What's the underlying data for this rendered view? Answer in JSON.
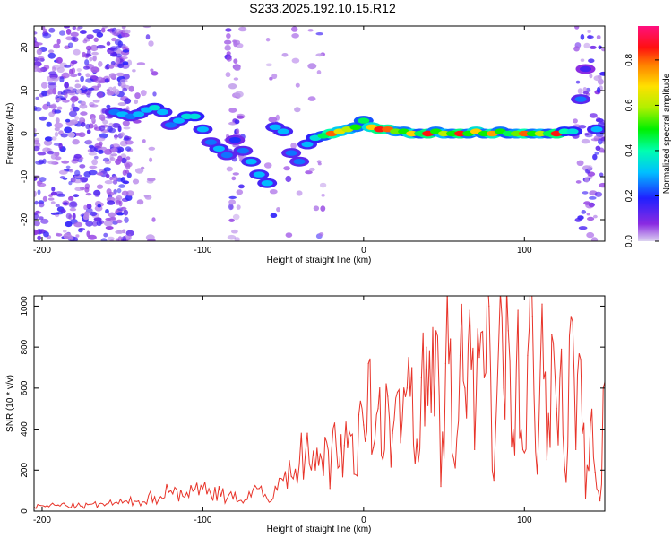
{
  "title": "S233.2025.192.10.15.R12",
  "chart_data": [
    {
      "type": "heatmap",
      "xlabel": "Height of straight line (km)",
      "ylabel": "Frequency (Hz)",
      "xlim": [
        -205,
        150
      ],
      "ylim": [
        -25,
        25
      ],
      "xticks": [
        -200,
        -100,
        0,
        100
      ],
      "yticks": [
        -20,
        -10,
        0,
        10,
        20
      ],
      "colorbar": {
        "label": "Normalized spectral amplitude",
        "range": [
          0.0,
          0.95
        ],
        "ticks": [
          0.0,
          0.2,
          0.4,
          0.6,
          0.8
        ],
        "colormap": "rainbow (purple -> blue -> cyan -> green -> yellow -> orange -> red -> magenta)"
      },
      "ridge": [
        {
          "x": -155,
          "y": 5.0,
          "v": 0.25
        },
        {
          "x": -150,
          "y": 4.5,
          "v": 0.3
        },
        {
          "x": -145,
          "y": 4.0,
          "v": 0.25
        },
        {
          "x": -140,
          "y": 4.5,
          "v": 0.3
        },
        {
          "x": -135,
          "y": 5.5,
          "v": 0.3
        },
        {
          "x": -130,
          "y": 6.0,
          "v": 0.35
        },
        {
          "x": -125,
          "y": 5.0,
          "v": 0.3
        },
        {
          "x": -120,
          "y": 2.0,
          "v": 0.25
        },
        {
          "x": -115,
          "y": 3.0,
          "v": 0.3
        },
        {
          "x": -110,
          "y": 4.0,
          "v": 0.35
        },
        {
          "x": -105,
          "y": 4.0,
          "v": 0.35
        },
        {
          "x": -100,
          "y": 1.0,
          "v": 0.3
        },
        {
          "x": -95,
          "y": -2.0,
          "v": 0.25
        },
        {
          "x": -90,
          "y": -3.5,
          "v": 0.3
        },
        {
          "x": -85,
          "y": -5.0,
          "v": 0.25
        },
        {
          "x": -80,
          "y": -1.5,
          "v": 0.2
        },
        {
          "x": -75,
          "y": -4.0,
          "v": 0.25
        },
        {
          "x": -70,
          "y": -6.5,
          "v": 0.3
        },
        {
          "x": -65,
          "y": -9.5,
          "v": 0.3
        },
        {
          "x": -60,
          "y": -11.5,
          "v": 0.3
        },
        {
          "x": -55,
          "y": 1.5,
          "v": 0.3
        },
        {
          "x": -50,
          "y": 0.5,
          "v": 0.3
        },
        {
          "x": -45,
          "y": -4.5,
          "v": 0.25
        },
        {
          "x": -40,
          "y": -6.5,
          "v": 0.25
        },
        {
          "x": -35,
          "y": -2.5,
          "v": 0.3
        },
        {
          "x": -30,
          "y": -1.0,
          "v": 0.35
        },
        {
          "x": -25,
          "y": -0.5,
          "v": 0.45
        },
        {
          "x": -20,
          "y": 0.0,
          "v": 0.8
        },
        {
          "x": -15,
          "y": 0.5,
          "v": 0.65
        },
        {
          "x": -10,
          "y": 1.0,
          "v": 0.6
        },
        {
          "x": -5,
          "y": 1.5,
          "v": 0.5
        },
        {
          "x": 0,
          "y": 3.0,
          "v": 0.45
        },
        {
          "x": 5,
          "y": 1.5,
          "v": 0.7
        },
        {
          "x": 10,
          "y": 1.0,
          "v": 0.85
        },
        {
          "x": 15,
          "y": 1.0,
          "v": 0.8
        },
        {
          "x": 20,
          "y": 0.5,
          "v": 0.55
        },
        {
          "x": 25,
          "y": 0.5,
          "v": 0.5
        },
        {
          "x": 30,
          "y": 0.0,
          "v": 0.7
        },
        {
          "x": 35,
          "y": 0.0,
          "v": 0.45
        },
        {
          "x": 40,
          "y": 0.0,
          "v": 0.85
        },
        {
          "x": 45,
          "y": 0.5,
          "v": 0.5
        },
        {
          "x": 50,
          "y": 0.0,
          "v": 0.6
        },
        {
          "x": 55,
          "y": 0.0,
          "v": 0.5
        },
        {
          "x": 60,
          "y": 0.0,
          "v": 0.85
        },
        {
          "x": 65,
          "y": 0.0,
          "v": 0.5
        },
        {
          "x": 70,
          "y": 0.5,
          "v": 0.7
        },
        {
          "x": 75,
          "y": 0.0,
          "v": 0.5
        },
        {
          "x": 80,
          "y": 0.0,
          "v": 0.75
        },
        {
          "x": 85,
          "y": 0.5,
          "v": 0.5
        },
        {
          "x": 90,
          "y": 0.0,
          "v": 0.45
        },
        {
          "x": 95,
          "y": 0.0,
          "v": 0.55
        },
        {
          "x": 100,
          "y": 0.0,
          "v": 0.8
        },
        {
          "x": 105,
          "y": 0.0,
          "v": 0.5
        },
        {
          "x": 110,
          "y": 0.0,
          "v": 0.6
        },
        {
          "x": 115,
          "y": 0.0,
          "v": 0.45
        },
        {
          "x": 120,
          "y": 0.0,
          "v": 0.85
        },
        {
          "x": 125,
          "y": 0.5,
          "v": 0.4
        },
        {
          "x": 130,
          "y": 0.5,
          "v": 0.35
        },
        {
          "x": 135,
          "y": 8.0,
          "v": 0.25
        },
        {
          "x": 138,
          "y": 15.0,
          "v": 0.15
        },
        {
          "x": 145,
          "y": 1.0,
          "v": 0.3
        }
      ]
    },
    {
      "type": "line",
      "xlabel": "Height of straight line (km)",
      "ylabel": "SNR (10 * v/v)",
      "xlim": [
        -205,
        150
      ],
      "ylim": [
        0,
        1050
      ],
      "xticks": [
        -200,
        -100,
        0,
        100
      ],
      "yticks": [
        0,
        200,
        400,
        600,
        800,
        1000
      ],
      "color": "#e8342a",
      "x": [
        -205,
        -190,
        -175,
        -160,
        -150,
        -140,
        -130,
        -120,
        -110,
        -100,
        -95,
        -90,
        -85,
        -80,
        -75,
        -70,
        -65,
        -60,
        -55,
        -50,
        -45,
        -40,
        -35,
        -30,
        -27,
        -24,
        -21,
        -18,
        -15,
        -12,
        -9,
        -6,
        -3,
        0,
        3,
        6,
        9,
        12,
        15,
        18,
        21,
        24,
        27,
        30,
        33,
        36,
        39,
        42,
        45,
        48,
        51,
        54,
        57,
        60,
        63,
        66,
        69,
        72,
        75,
        78,
        81,
        84,
        87,
        90,
        93,
        96,
        99,
        102,
        105,
        108,
        111,
        114,
        117,
        120,
        123,
        126,
        129,
        132,
        135,
        138,
        141,
        144,
        147,
        150
      ],
      "y": [
        20,
        30,
        25,
        35,
        40,
        50,
        70,
        100,
        90,
        110,
        80,
        120,
        60,
        90,
        40,
        70,
        110,
        60,
        120,
        150,
        170,
        230,
        380,
        200,
        280,
        360,
        110,
        430,
        220,
        320,
        390,
        180,
        470,
        420,
        720,
        310,
        500,
        250,
        560,
        380,
        580,
        440,
        600,
        700,
        350,
        650,
        800,
        480,
        880,
        120,
        720,
        840,
        210,
        760,
        600,
        980,
        300,
        750,
        650,
        1000,
        150,
        820,
        600,
        880,
        400,
        980,
        300,
        760,
        950,
        180,
        1010,
        250,
        860,
        500,
        790,
        140,
        950,
        300,
        740,
        60,
        420,
        190,
        50,
        630
      ]
    }
  ]
}
